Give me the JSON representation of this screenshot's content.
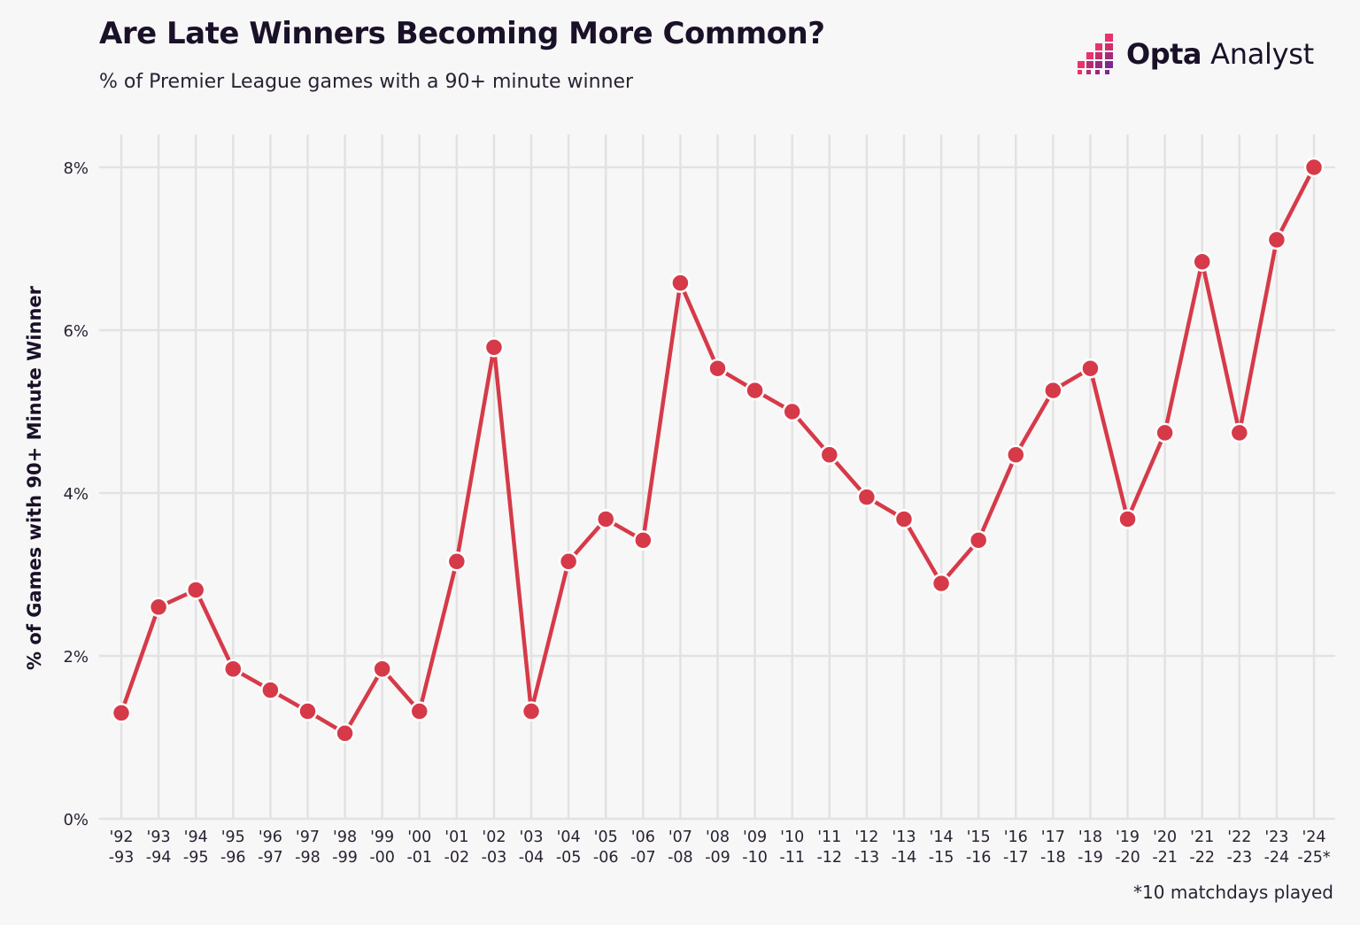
{
  "header": {
    "title": "Are Late Winners Becoming More Common?",
    "subtitle": "% of Premier League games with a 90+ minute winner"
  },
  "brand": {
    "name_bold": "Opta",
    "name_regular": "Analyst",
    "icon": "opta-analyst-logo-icon"
  },
  "footnote": "*10 matchdays played",
  "colors": {
    "line": "#d63a49",
    "marker_fill": "#d63a49",
    "marker_stroke": "#ffffff",
    "grid": "#e2e2e2",
    "background": "#f7f7f7",
    "text": "#1a1128",
    "brand_pink": "#e8336d",
    "brand_purple": "#7b2a8f"
  },
  "chart_data": {
    "type": "line",
    "title": "Are Late Winners Becoming More Common?",
    "subtitle": "% of Premier League games with a 90+ minute winner",
    "xlabel": "",
    "ylabel": "% of Games with 90+ Minute Winner",
    "ylim": [
      0,
      8
    ],
    "yticks": [
      0,
      2,
      4,
      6,
      8
    ],
    "ytick_labels": [
      "0%",
      "2%",
      "4%",
      "6%",
      "8%"
    ],
    "grid": true,
    "legend": "none",
    "categories": [
      [
        "'92",
        "-93"
      ],
      [
        "'93",
        "-94"
      ],
      [
        "'94",
        "-95"
      ],
      [
        "'95",
        "-96"
      ],
      [
        "'96",
        "-97"
      ],
      [
        "'97",
        "-98"
      ],
      [
        "'98",
        "-99"
      ],
      [
        "'99",
        "-00"
      ],
      [
        "'00",
        "-01"
      ],
      [
        "'01",
        "-02"
      ],
      [
        "'02",
        "-03"
      ],
      [
        "'03",
        "-04"
      ],
      [
        "'04",
        "-05"
      ],
      [
        "'05",
        "-06"
      ],
      [
        "'06",
        "-07"
      ],
      [
        "'07",
        "-08"
      ],
      [
        "'08",
        "-09"
      ],
      [
        "'09",
        "-10"
      ],
      [
        "'10",
        "-11"
      ],
      [
        "'11",
        "-12"
      ],
      [
        "'12",
        "-13"
      ],
      [
        "'13",
        "-14"
      ],
      [
        "'14",
        "-15"
      ],
      [
        "'15",
        "-16"
      ],
      [
        "'16",
        "-17"
      ],
      [
        "'17",
        "-18"
      ],
      [
        "'18",
        "-19"
      ],
      [
        "'19",
        "-20"
      ],
      [
        "'20",
        "-21"
      ],
      [
        "'21",
        "-22"
      ],
      [
        "'22",
        "-23"
      ],
      [
        "'23",
        "-24"
      ],
      [
        "'24",
        "-25*"
      ]
    ],
    "series": [
      {
        "values": [
          1.3,
          2.6,
          2.81,
          1.84,
          1.58,
          1.32,
          1.05,
          1.84,
          1.32,
          3.16,
          5.79,
          1.32,
          3.16,
          3.68,
          3.42,
          6.58,
          5.53,
          5.26,
          5.0,
          4.47,
          3.95,
          3.68,
          2.89,
          3.42,
          4.47,
          5.26,
          5.53,
          3.68,
          4.74,
          6.84,
          4.74,
          7.11,
          8.0
        ]
      }
    ]
  }
}
